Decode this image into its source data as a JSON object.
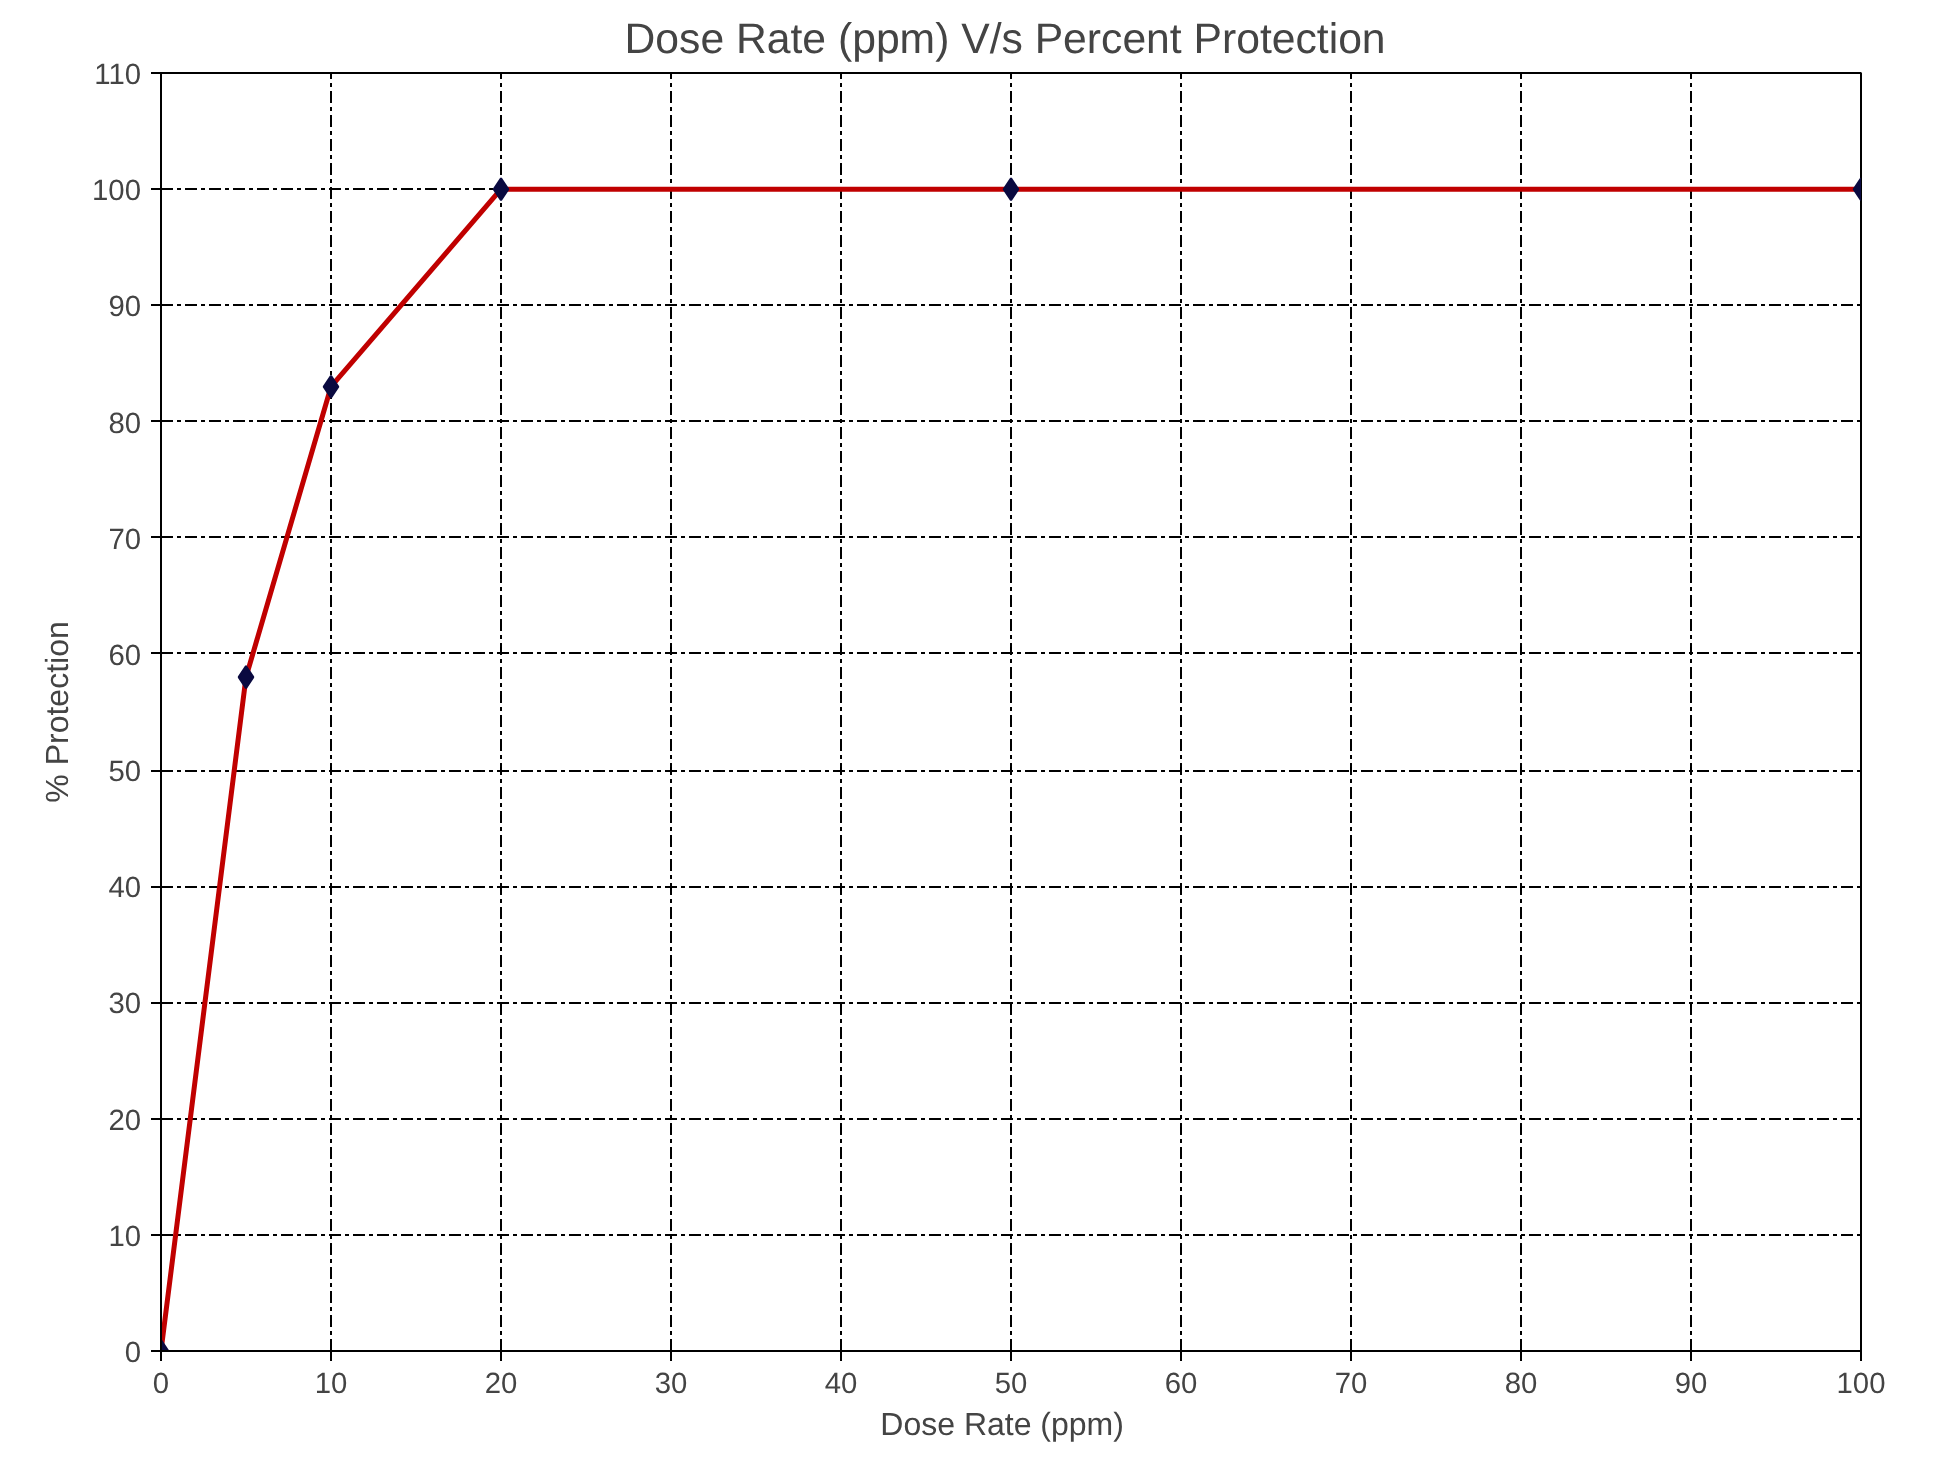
{
  "chart_data": {
    "type": "line",
    "title": "Dose Rate (ppm) V/s  Percent Protection",
    "xlabel": "Dose  Rate  (ppm)",
    "ylabel": "% Protection",
    "x": [
      0,
      5,
      10,
      20,
      50,
      100
    ],
    "series": [
      {
        "color": "#c00000",
        "values": [
          0,
          58,
          83,
          100,
          100,
          100
        ]
      }
    ],
    "xlim": [
      0,
      100
    ],
    "xticks": [
      0,
      10,
      20,
      30,
      40,
      50,
      60,
      70,
      80,
      90,
      100
    ],
    "ylim": [
      0,
      110
    ],
    "yticks": [
      0,
      10,
      20,
      30,
      40,
      50,
      60,
      70,
      80,
      90,
      100,
      110
    ],
    "grid": true,
    "marker": "diamond",
    "line_style": "solid"
  }
}
